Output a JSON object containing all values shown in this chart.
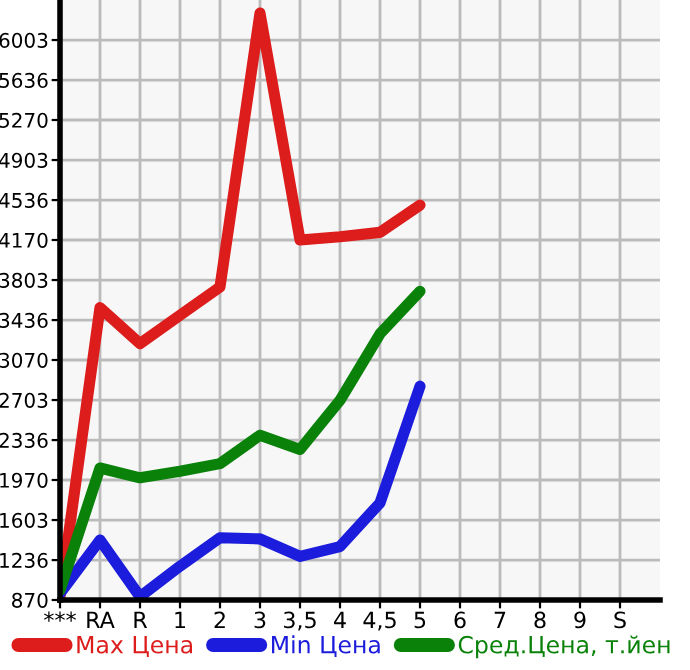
{
  "chart_data": {
    "type": "line",
    "categories": [
      "***",
      "RA",
      "R",
      "1",
      "2",
      "3",
      "3,5",
      "4",
      "4,5",
      "5",
      "6",
      "7",
      "8",
      "9",
      "S"
    ],
    "series": [
      {
        "name": "Max Цена",
        "color": "#dd1c1c",
        "values": [
          900,
          3550,
          3220,
          3480,
          3740,
          6250,
          4170,
          4200,
          4240,
          4490,
          null,
          null,
          null,
          null,
          null
        ]
      },
      {
        "name": "Min Цена",
        "color": "#1c1cdd",
        "values": [
          930,
          1420,
          900,
          1180,
          1440,
          1430,
          1270,
          1360,
          1760,
          2830,
          null,
          null,
          null,
          null,
          null
        ]
      },
      {
        "name": "Сред.Цена, т.йен",
        "color": "#0a820a",
        "values": [
          960,
          2080,
          1990,
          2050,
          2120,
          2380,
          2250,
          2700,
          3310,
          3700,
          null,
          null,
          null,
          null,
          null
        ]
      }
    ],
    "ylim": [
      870,
      6370
    ],
    "yticks": [
      870,
      1236,
      1603,
      1970,
      2336,
      2703,
      3070,
      3436,
      3803,
      4170,
      4536,
      4903,
      5270,
      5636,
      6003
    ],
    "grid": true,
    "legend": "bottom",
    "marker": "none",
    "line_style": "solid"
  }
}
